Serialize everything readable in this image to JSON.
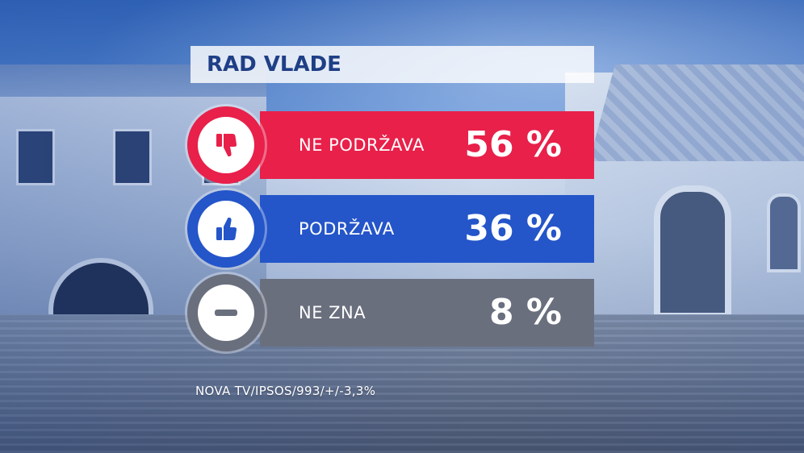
{
  "chart_data": {
    "type": "bar",
    "title": "RAD VLADE",
    "categories": [
      "NE PODRŽAVA",
      "PODRŽAVA",
      "NE ZNA"
    ],
    "values": [
      56,
      36,
      8
    ],
    "value_labels": [
      "56 %",
      "36 %",
      "8 %"
    ],
    "unit": "%",
    "source": "NOVA TV/IPSOS/993/+/-3,3%",
    "colors": [
      "#e8204a",
      "#2455c9",
      "#6a6f7e"
    ],
    "icons": [
      "thumbs-down-icon",
      "thumbs-up-icon",
      "minus-icon"
    ],
    "grid": false,
    "legend": "none"
  }
}
